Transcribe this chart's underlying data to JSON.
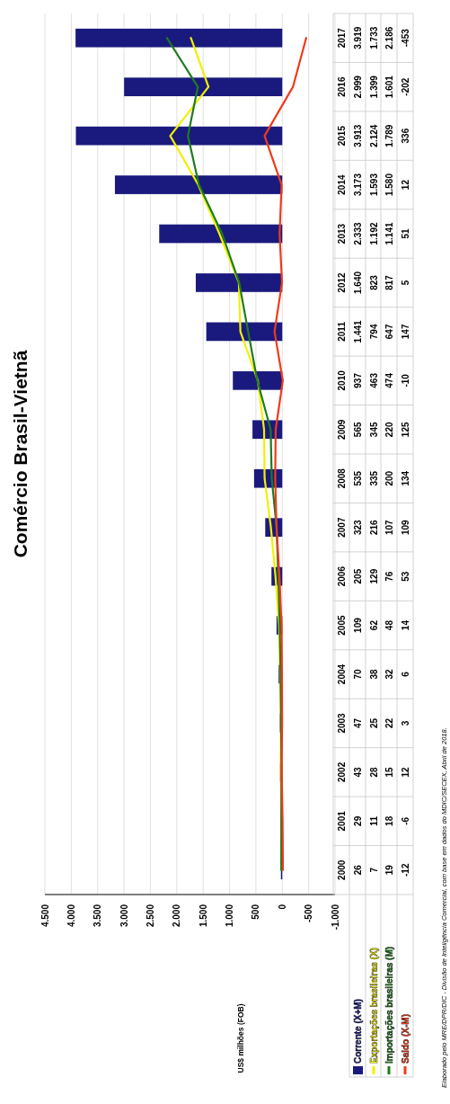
{
  "chart_data": {
    "type": "bar",
    "orientation": "horizontal",
    "title": "Comércio Brasil-Vietnã",
    "categories": [
      "2017",
      "2016",
      "2015",
      "2014",
      "2013",
      "2012",
      "2011",
      "2010",
      "2009",
      "2008",
      "2007",
      "2006",
      "2005",
      "2004",
      "2003",
      "2002",
      "2001",
      "2000"
    ],
    "series": [
      {
        "name": "Corrente (X+M)",
        "type": "bar",
        "color": "#1a1a7e",
        "values": [
          3919,
          2999,
          3913,
          3173,
          2333,
          1640,
          1441,
          937,
          565,
          535,
          323,
          205,
          109,
          70,
          47,
          43,
          29,
          26
        ],
        "value_labels": [
          "3.919",
          "2.999",
          "3.913",
          "3.173",
          "2.333",
          "1.640",
          "1.441",
          "937",
          "565",
          "535",
          "323",
          "205",
          "109",
          "70",
          "47",
          "43",
          "29",
          "26"
        ]
      },
      {
        "name": "Exportações brasileiras (X)",
        "type": "line",
        "color": "#f2f000",
        "values": [
          1733,
          1399,
          2124,
          1593,
          1192,
          823,
          794,
          463,
          345,
          335,
          216,
          129,
          62,
          38,
          25,
          28,
          11,
          7
        ],
        "value_labels": [
          "1.733",
          "1.399",
          "2.124",
          "1.593",
          "1.192",
          "823",
          "794",
          "463",
          "345",
          "335",
          "216",
          "129",
          "62",
          "38",
          "25",
          "28",
          "11",
          "7"
        ]
      },
      {
        "name": "Importações brasileiras (M)",
        "type": "line",
        "color": "#1f7a1f",
        "values": [
          2186,
          1601,
          1789,
          1580,
          1141,
          817,
          647,
          474,
          220,
          200,
          107,
          76,
          48,
          32,
          22,
          15,
          18,
          19
        ],
        "value_labels": [
          "2.186",
          "1.601",
          "1.789",
          "1.580",
          "1.141",
          "817",
          "647",
          "474",
          "220",
          "200",
          "107",
          "76",
          "48",
          "32",
          "22",
          "15",
          "18",
          "19"
        ]
      },
      {
        "name": "Saldo (X-M)",
        "type": "line",
        "color": "#f03a1c",
        "values": [
          -453,
          -202,
          336,
          12,
          51,
          5,
          147,
          -10,
          125,
          134,
          109,
          53,
          14,
          6,
          3,
          12,
          -6,
          -12
        ],
        "value_labels": [
          "-453",
          "-202",
          "336",
          "12",
          "51",
          "5",
          "147",
          "-10",
          "125",
          "134",
          "109",
          "53",
          "14",
          "6",
          "3",
          "12",
          "-6",
          "-12"
        ]
      }
    ],
    "xlim": [
      4500,
      -1000
    ],
    "xticks": [
      {
        "value": 4500,
        "label": "4.500"
      },
      {
        "value": 4000,
        "label": "4.000"
      },
      {
        "value": 3500,
        "label": "3.500"
      },
      {
        "value": 3000,
        "label": "3.000"
      },
      {
        "value": 2500,
        "label": "2.500"
      },
      {
        "value": 2000,
        "label": "2.000"
      },
      {
        "value": 1500,
        "label": "1.500"
      },
      {
        "value": 1000,
        "label": "1.000"
      },
      500,
      0,
      -500,
      {
        "value": -1000,
        "label": "-1.000"
      }
    ],
    "grid": "x",
    "legend": "bottom",
    "annotations": [
      "US$ milhões (FOB)",
      "Elaborado pelo MRE/DPR/DIC - Divisão de Inteligência Comercial, com base em dados do MDIC/SECEX, Abril de 2018."
    ]
  }
}
